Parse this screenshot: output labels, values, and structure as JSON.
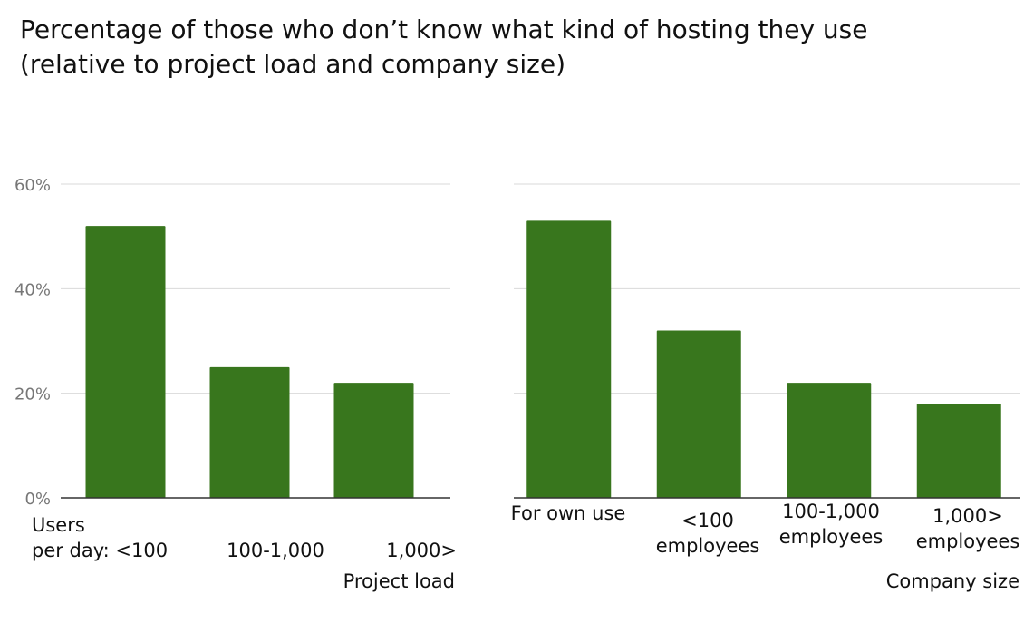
{
  "title": {
    "line1": "Percentage of those who don’t know what kind of hosting they use",
    "line2": "(relative to project load and company size)"
  },
  "colors": {
    "bar": "#38761d",
    "grid": "#d9d9d9",
    "axis": "#333333"
  },
  "chart_data": [
    {
      "type": "bar",
      "xlabel": "Project load",
      "ylabel": "",
      "ylim": [
        0,
        60
      ],
      "yticks": [
        "0%",
        "20%",
        "40%",
        "60%"
      ],
      "grid": true,
      "categories": [
        [
          "Users",
          "per day: <100"
        ],
        [
          "100-1,000"
        ],
        [
          "1,000>"
        ]
      ],
      "values": [
        52,
        25,
        22
      ]
    },
    {
      "type": "bar",
      "xlabel": "Company size",
      "ylabel": "",
      "ylim": [
        0,
        60
      ],
      "yticks": [],
      "grid": true,
      "categories": [
        [
          "For own use"
        ],
        [
          "<100",
          "employees"
        ],
        [
          "100-1,000",
          "employees"
        ],
        [
          "1,000>",
          "employees"
        ]
      ],
      "values": [
        53,
        32,
        22,
        18
      ]
    }
  ]
}
